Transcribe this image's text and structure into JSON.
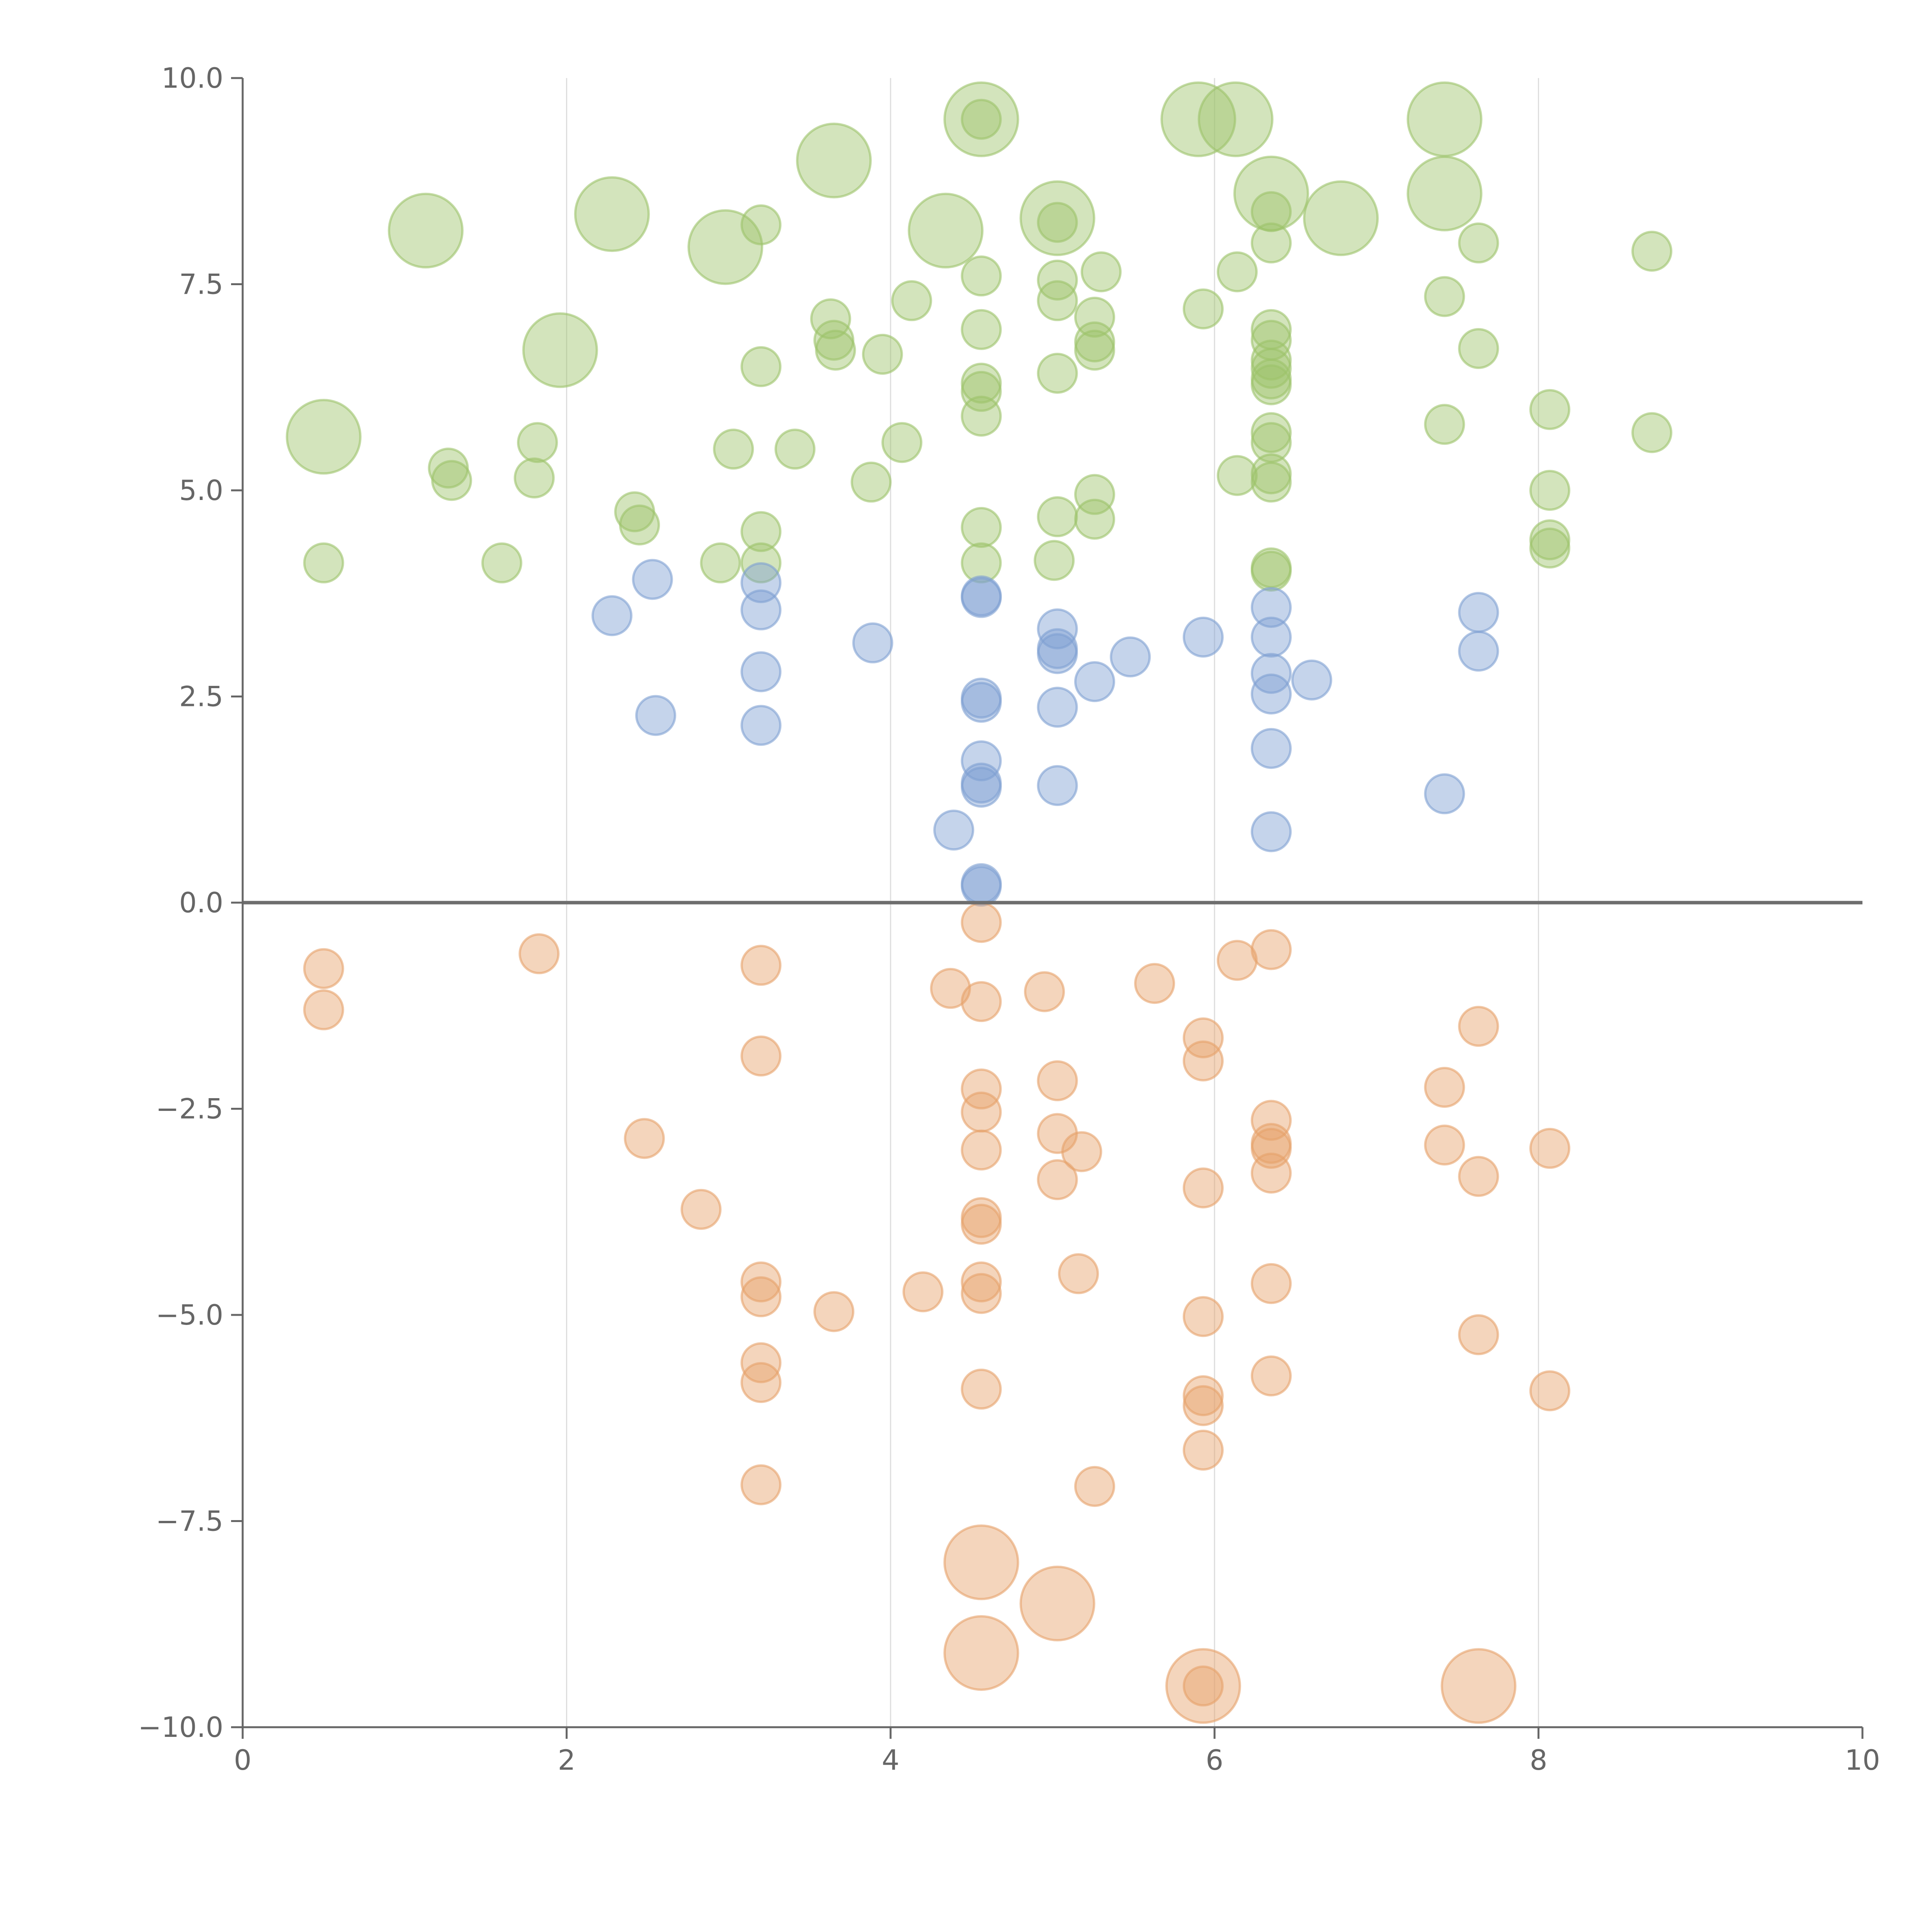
{
  "chart_data": {
    "type": "scatter",
    "title": "",
    "xlabel": "",
    "ylabel": "",
    "xlim": [
      0,
      10
    ],
    "ylim": [
      -10,
      10
    ],
    "grid": "vertical",
    "x_ticks": [
      "0",
      "2",
      "4",
      "6",
      "8",
      "10"
    ],
    "y_ticks": [
      "10.0",
      "7.5",
      "5.0",
      "2.5",
      "0.0",
      "−2.5",
      "−5.0",
      "−7.5",
      "−10.0"
    ],
    "x_tick_values": [
      0,
      2,
      4,
      6,
      8,
      10
    ],
    "y_tick_values": [
      10,
      7.5,
      5,
      2.5,
      0,
      -2.5,
      -5,
      -7.5,
      -10
    ],
    "reference_line_y": 0,
    "series": [
      {
        "name": "green",
        "color": "#9dc36b",
        "points": [
          [
            0.5,
            5.65,
            2
          ],
          [
            1.13,
            8.15,
            2
          ],
          [
            1.96,
            6.7,
            2
          ],
          [
            2.28,
            8.35,
            2
          ],
          [
            2.98,
            7.95,
            2
          ],
          [
            3.65,
            9.0,
            2
          ],
          [
            4.34,
            8.15,
            2
          ],
          [
            4.56,
            9.5,
            2
          ],
          [
            5.03,
            8.3,
            2
          ],
          [
            5.9,
            9.5,
            2
          ],
          [
            6.13,
            9.5,
            2
          ],
          [
            6.35,
            8.6,
            2
          ],
          [
            6.78,
            8.3,
            2
          ],
          [
            7.42,
            9.5,
            2
          ],
          [
            7.42,
            8.6,
            2
          ],
          [
            0.5,
            4.12,
            1
          ],
          [
            1.27,
            5.27,
            1
          ],
          [
            1.29,
            5.12,
            1
          ],
          [
            1.6,
            4.12,
            1
          ],
          [
            1.8,
            5.15,
            1
          ],
          [
            1.82,
            5.58,
            1
          ],
          [
            2.42,
            4.74,
            1
          ],
          [
            2.45,
            4.58,
            1
          ],
          [
            2.95,
            4.12,
            1
          ],
          [
            3.03,
            5.5,
            1
          ],
          [
            3.2,
            8.22,
            1
          ],
          [
            3.2,
            6.5,
            1
          ],
          [
            3.2,
            4.5,
            1
          ],
          [
            3.2,
            4.12,
            1
          ],
          [
            3.41,
            5.5,
            1
          ],
          [
            3.63,
            7.08,
            1
          ],
          [
            3.65,
            6.82,
            1
          ],
          [
            3.66,
            6.7,
            1
          ],
          [
            3.88,
            5.1,
            1
          ],
          [
            3.95,
            6.65,
            1
          ],
          [
            4.07,
            5.58,
            1
          ],
          [
            4.13,
            7.3,
            1
          ],
          [
            4.56,
            9.5,
            1
          ],
          [
            4.56,
            7.6,
            1
          ],
          [
            4.56,
            6.95,
            1
          ],
          [
            4.56,
            6.3,
            1
          ],
          [
            4.56,
            6.2,
            1
          ],
          [
            4.56,
            5.9,
            1
          ],
          [
            4.56,
            4.55,
            1
          ],
          [
            4.56,
            4.12,
            1
          ],
          [
            5.03,
            8.25,
            1
          ],
          [
            5.03,
            7.55,
            1
          ],
          [
            5.03,
            7.3,
            1
          ],
          [
            5.03,
            6.42,
            1
          ],
          [
            5.03,
            4.68,
            1
          ],
          [
            5.01,
            4.15,
            1
          ],
          [
            5.26,
            7.1,
            1
          ],
          [
            5.26,
            6.8,
            1
          ],
          [
            5.26,
            6.7,
            1
          ],
          [
            5.26,
            4.95,
            1
          ],
          [
            5.26,
            4.65,
            1
          ],
          [
            5.3,
            7.65,
            1
          ],
          [
            5.93,
            7.2,
            1
          ],
          [
            6.14,
            7.65,
            1
          ],
          [
            6.14,
            5.18,
            1
          ],
          [
            6.35,
            8.38,
            1
          ],
          [
            6.35,
            8.0,
            1
          ],
          [
            6.35,
            6.95,
            1
          ],
          [
            6.35,
            6.82,
            1
          ],
          [
            6.35,
            6.58,
            1
          ],
          [
            6.35,
            6.48,
            1
          ],
          [
            6.35,
            6.35,
            1
          ],
          [
            6.35,
            6.28,
            1
          ],
          [
            6.35,
            5.7,
            1
          ],
          [
            6.35,
            5.58,
            1
          ],
          [
            6.35,
            5.2,
            1
          ],
          [
            6.35,
            5.1,
            1
          ],
          [
            6.35,
            4.06,
            1
          ],
          [
            6.35,
            4.02,
            1
          ],
          [
            7.42,
            7.35,
            1
          ],
          [
            7.42,
            5.8,
            1
          ],
          [
            7.63,
            8.0,
            1
          ],
          [
            7.63,
            6.72,
            1
          ],
          [
            8.07,
            5.98,
            1
          ],
          [
            8.07,
            5.0,
            1
          ],
          [
            8.07,
            4.4,
            1
          ],
          [
            8.07,
            4.3,
            1
          ],
          [
            8.7,
            7.9,
            1
          ],
          [
            8.7,
            5.7,
            1
          ]
        ]
      },
      {
        "name": "blue",
        "color": "#7fa0d2",
        "points": [
          [
            2.28,
            3.48,
            1
          ],
          [
            2.53,
            3.92,
            1
          ],
          [
            2.55,
            2.27,
            1
          ],
          [
            3.2,
            3.88,
            1
          ],
          [
            3.2,
            3.55,
            1
          ],
          [
            3.2,
            2.8,
            1
          ],
          [
            3.2,
            2.15,
            1
          ],
          [
            3.89,
            3.15,
            1
          ],
          [
            4.39,
            0.88,
            1
          ],
          [
            4.56,
            3.72,
            1
          ],
          [
            4.56,
            3.7,
            1
          ],
          [
            4.56,
            2.48,
            1
          ],
          [
            4.56,
            2.43,
            1
          ],
          [
            4.56,
            1.72,
            1
          ],
          [
            4.56,
            1.45,
            1
          ],
          [
            4.56,
            1.4,
            1
          ],
          [
            4.56,
            0.23,
            1
          ],
          [
            4.56,
            0.2,
            1
          ],
          [
            5.03,
            3.32,
            1
          ],
          [
            5.03,
            3.08,
            1
          ],
          [
            5.03,
            3.02,
            1
          ],
          [
            5.03,
            2.37,
            1
          ],
          [
            5.03,
            1.42,
            1
          ],
          [
            5.26,
            2.68,
            1
          ],
          [
            5.48,
            2.98,
            1
          ],
          [
            5.93,
            3.22,
            1
          ],
          [
            6.35,
            3.58,
            1
          ],
          [
            6.35,
            3.22,
            1
          ],
          [
            6.35,
            2.78,
            1
          ],
          [
            6.35,
            2.53,
            1
          ],
          [
            6.35,
            1.87,
            1
          ],
          [
            6.35,
            0.86,
            1
          ],
          [
            6.6,
            2.7,
            1
          ],
          [
            7.42,
            1.32,
            1
          ],
          [
            7.63,
            3.52,
            1
          ],
          [
            7.63,
            3.05,
            1
          ]
        ]
      },
      {
        "name": "orange",
        "color": "#e6a26a",
        "points": [
          [
            0.5,
            -0.8,
            1
          ],
          [
            0.5,
            -1.3,
            1
          ],
          [
            1.83,
            -0.62,
            1
          ],
          [
            2.48,
            -2.86,
            1
          ],
          [
            2.83,
            -3.72,
            1
          ],
          [
            3.2,
            -0.76,
            1
          ],
          [
            3.2,
            -1.86,
            1
          ],
          [
            3.2,
            -4.6,
            1
          ],
          [
            3.2,
            -4.78,
            1
          ],
          [
            3.2,
            -5.58,
            1
          ],
          [
            3.2,
            -5.82,
            1
          ],
          [
            3.2,
            -7.06,
            1
          ],
          [
            3.65,
            -4.96,
            1
          ],
          [
            4.2,
            -4.72,
            1
          ],
          [
            4.37,
            -1.04,
            1
          ],
          [
            4.56,
            -0.24,
            1
          ],
          [
            4.56,
            -1.2,
            1
          ],
          [
            4.56,
            -2.26,
            1
          ],
          [
            4.56,
            -2.54,
            1
          ],
          [
            4.56,
            -3.0,
            1
          ],
          [
            4.56,
            -3.82,
            1
          ],
          [
            4.56,
            -3.9,
            1
          ],
          [
            4.56,
            -4.6,
            1
          ],
          [
            4.56,
            -4.74,
            1
          ],
          [
            4.56,
            -5.9,
            1
          ],
          [
            4.56,
            -8.0,
            2
          ],
          [
            4.56,
            -9.1,
            2
          ],
          [
            4.95,
            -1.08,
            1
          ],
          [
            5.03,
            -2.16,
            1
          ],
          [
            5.03,
            -2.8,
            1
          ],
          [
            5.03,
            -3.36,
            1
          ],
          [
            5.03,
            -8.5,
            2
          ],
          [
            5.18,
            -3.02,
            1
          ],
          [
            5.16,
            -4.5,
            1
          ],
          [
            5.26,
            -7.08,
            1
          ],
          [
            5.63,
            -0.98,
            1
          ],
          [
            5.93,
            -1.64,
            1
          ],
          [
            5.93,
            -1.92,
            1
          ],
          [
            5.93,
            -3.46,
            1
          ],
          [
            5.93,
            -5.02,
            1
          ],
          [
            5.93,
            -5.98,
            1
          ],
          [
            5.93,
            -6.1,
            1
          ],
          [
            5.93,
            -6.64,
            1
          ],
          [
            5.93,
            -9.5,
            1
          ],
          [
            5.93,
            -9.5,
            2
          ],
          [
            6.14,
            -0.7,
            1
          ],
          [
            6.35,
            -0.57,
            1
          ],
          [
            6.35,
            -2.64,
            1
          ],
          [
            6.35,
            -2.92,
            1
          ],
          [
            6.35,
            -2.98,
            1
          ],
          [
            6.35,
            -3.28,
            1
          ],
          [
            6.35,
            -4.62,
            1
          ],
          [
            6.35,
            -5.74,
            1
          ],
          [
            7.42,
            -2.24,
            1
          ],
          [
            7.42,
            -2.94,
            1
          ],
          [
            7.63,
            -1.5,
            1
          ],
          [
            7.63,
            -3.32,
            1
          ],
          [
            7.63,
            -5.24,
            1
          ],
          [
            7.63,
            -9.5,
            2
          ],
          [
            8.07,
            -2.98,
            1
          ],
          [
            8.07,
            -5.92,
            1
          ]
        ]
      }
    ]
  }
}
